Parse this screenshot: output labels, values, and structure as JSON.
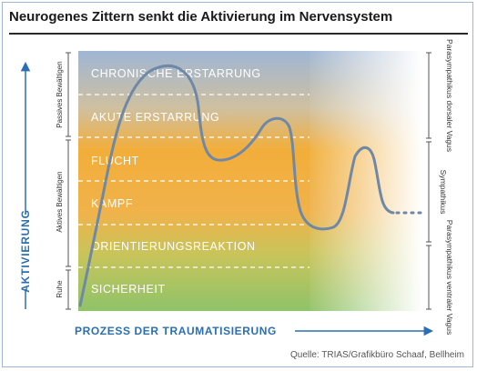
{
  "title": "Neurogenes Zittern senkt die Aktivierung im Nervensystem",
  "y_axis_label": "AKTIVIERUNG",
  "x_axis_label": "PROZESS DER TRAUMATISIERUNG",
  "source": "Quelle: TRIAS/Grafikbüro Schaaf, Bellheim",
  "levels": [
    "CHRONISCHE ERSTARRUNG",
    "AKUTE ERSTARRUNG",
    "FLUCHT",
    "KAMPF",
    "ORIENTIERUNGSREAKTION",
    "SICHERHEIT"
  ],
  "left_brackets": [
    "Passives Bewältigen",
    "Aktives Bewältigen",
    "Ruhe"
  ],
  "right_brackets": [
    "Parasympathikus dorsaler Vagus",
    "Sympathikus",
    "Parasympathikus ventraler Vagus"
  ],
  "colors": {
    "curve": "#6f88a6",
    "accent": "#2b6fb0",
    "top_band": "#9eb6d3",
    "mid_band": "#f0b03a",
    "bottom_band": "#95c66b"
  }
}
